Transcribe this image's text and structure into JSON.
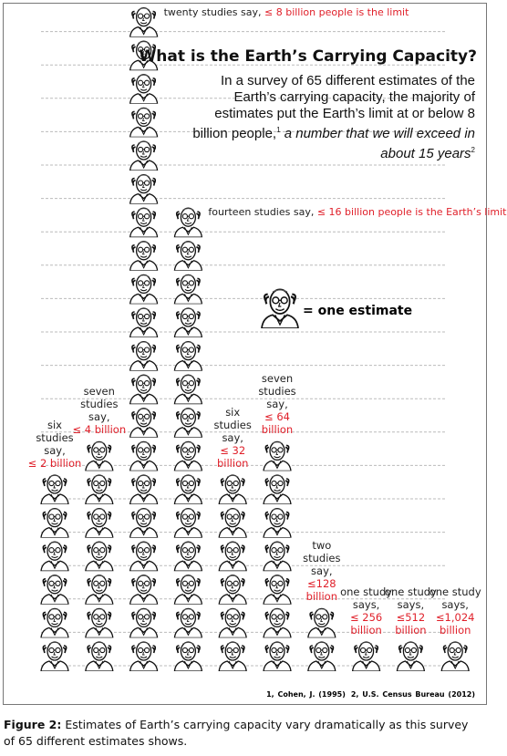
{
  "chart_data": {
    "type": "pictogram",
    "title": "What is the Earth’s Carrying Capacity?",
    "subtitle": {
      "text": "In a survey of 65 different estimates of the Earth’s carrying capacity, the majority of estimates put the Earth’s limit at or below 8 billion people,",
      "note1": "1",
      "emphasis": "a number that we will exceed in about 15 years",
      "note2": "2"
    },
    "legend": "= one estimate",
    "categories": [
      {
        "label": "six studies say,",
        "limit": "≤ 2 billion"
      },
      {
        "label": "seven studies say,",
        "limit": "≤ 4 billion"
      },
      {
        "label": "twenty studies say,",
        "limit": "≤ 8 billion people is the limit"
      },
      {
        "label": "fourteen studies say,",
        "limit": "≤ 16 billion people is the Earth’s limit"
      },
      {
        "label": "six studies say,",
        "limit": "≤ 32 billion"
      },
      {
        "label": "seven studies say,",
        "limit": "≤ 64 billion"
      },
      {
        "label": "two studies say,",
        "limit": "≤128 billion"
      },
      {
        "label": "one study says,",
        "limit": "≤ 256 billion"
      },
      {
        "label": "one study says,",
        "limit": "≤512 billion"
      },
      {
        "label": "one study says,",
        "limit": "≤1,024 billion"
      }
    ],
    "values": [
      6,
      7,
      20,
      14,
      6,
      7,
      2,
      1,
      1,
      1
    ]
  },
  "footnotes": [
    "1, Cohen, J. (1995)",
    "2, U.S. Census Bureau (2012)"
  ],
  "caption": {
    "label": "Figure 2:",
    "text": "Estimates of Earth’s carrying capacity vary dramatically as this survey of 65 different estimates shows."
  }
}
